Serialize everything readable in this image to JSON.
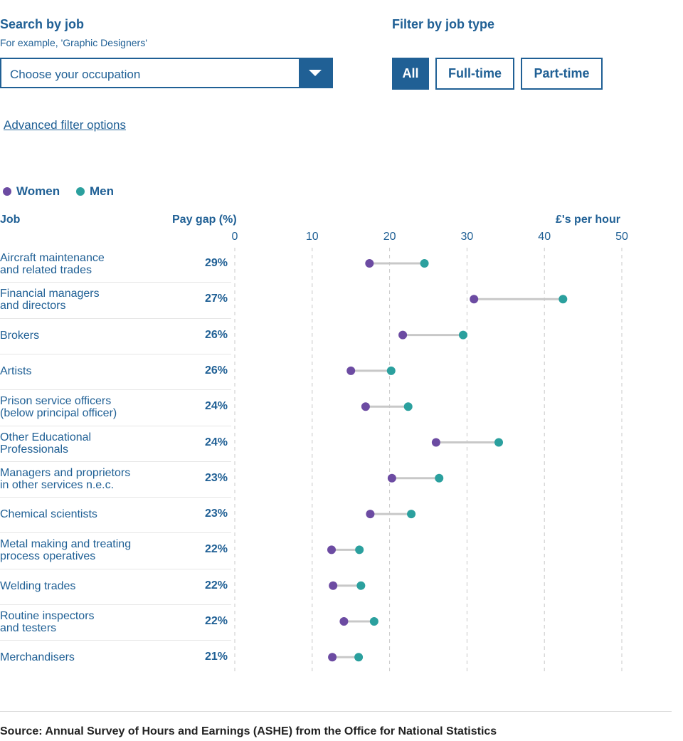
{
  "search": {
    "heading": "Search by job",
    "hint": "For example, 'Graphic Designers'",
    "placeholder": "Choose your occupation"
  },
  "filter": {
    "heading": "Filter by job type",
    "buttons": [
      "All",
      "Full-time",
      "Part-time"
    ],
    "selected": "All"
  },
  "advanced_link": "Advanced filter options",
  "colors": {
    "women": "#6c4ba2",
    "men": "#2ba09e",
    "primary": "#206095",
    "connector": "#c8c8c8"
  },
  "chart_data": {
    "type": "dumbbell",
    "legend": [
      "Women",
      "Men"
    ],
    "col_job": "Job",
    "col_gap": "Pay gap (%)",
    "xlabel": "£'s per hour",
    "xlim": [
      0,
      50
    ],
    "ticks": [
      0,
      10,
      20,
      30,
      40,
      50
    ],
    "grid": "vertical-dashed",
    "rows": [
      {
        "job": [
          "Aircraft maintenance",
          "and related trades"
        ],
        "gap": "29%",
        "women": 17.4,
        "men": 24.5
      },
      {
        "job": [
          "Financial managers",
          "and directors"
        ],
        "gap": "27%",
        "women": 30.9,
        "men": 42.4
      },
      {
        "job": [
          "Brokers"
        ],
        "gap": "26%",
        "women": 21.7,
        "men": 29.5
      },
      {
        "job": [
          "Artists"
        ],
        "gap": "26%",
        "women": 15.0,
        "men": 20.2
      },
      {
        "job": [
          "Prison service officers",
          "(below principal officer)"
        ],
        "gap": "24%",
        "women": 16.9,
        "men": 22.4
      },
      {
        "job": [
          "Other Educational",
          "Professionals"
        ],
        "gap": "24%",
        "women": 26.0,
        "men": 34.1
      },
      {
        "job": [
          "Managers and proprietors",
          "in other services n.e.c."
        ],
        "gap": "23%",
        "women": 20.3,
        "men": 26.4
      },
      {
        "job": [
          "Chemical scientists"
        ],
        "gap": "23%",
        "women": 17.5,
        "men": 22.8
      },
      {
        "job": [
          "Metal making and treating",
          "process operatives"
        ],
        "gap": "22%",
        "women": 12.5,
        "men": 16.1
      },
      {
        "job": [
          "Welding trades"
        ],
        "gap": "22%",
        "women": 12.7,
        "men": 16.3
      },
      {
        "job": [
          "Routine inspectors",
          "and testers"
        ],
        "gap": "22%",
        "women": 14.1,
        "men": 18.0
      },
      {
        "job": [
          "Merchandisers"
        ],
        "gap": "21%",
        "women": 12.6,
        "men": 16.0
      }
    ]
  },
  "source": "Source: Annual Survey of Hours and Earnings (ASHE) from the Office for National Statistics"
}
